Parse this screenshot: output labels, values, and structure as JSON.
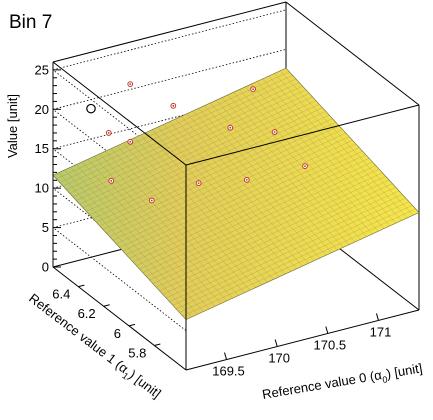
{
  "chart_data": {
    "type": "scatter",
    "title": "Bin 7",
    "zlabel": "Value [unit]",
    "xlabel_main": "Reference value 0 (α",
    "xlabel_sub": "0",
    "xlabel_tail": ") [unit]",
    "ylabel_main": "Reference value 1 (α",
    "ylabel_sub": "1",
    "ylabel_tail": ") [unit]",
    "x_range": [
      169.1,
      171.4
    ],
    "y_range": [
      5.55,
      6.6
    ],
    "z_range": [
      0,
      26
    ],
    "x_ticks": [
      169.5,
      170,
      170.5,
      171
    ],
    "x_tick_labels": [
      "169.5",
      "170",
      "170.5",
      "171"
    ],
    "y_ticks": [
      5.8,
      6,
      6.2,
      6.4
    ],
    "y_tick_labels": [
      "5.8",
      "6",
      "6.2",
      "6.4"
    ],
    "z_ticks": [
      0,
      5,
      10,
      15,
      20,
      25
    ],
    "z_tick_labels": [
      "0",
      "5",
      "10",
      "15",
      "20",
      "25"
    ],
    "surface": {
      "type": "plane",
      "z0": 12.0,
      "dz_dx": 2.6,
      "dz_dy": 5.0,
      "x_ref": 170.25,
      "y_ref": 6.075,
      "grid": 40
    },
    "points": [
      {
        "x": 169.35,
        "y": 6.5,
        "z": 20.5,
        "emphasis": true
      },
      {
        "x": 169.3,
        "y": 6.3,
        "z": 14.0
      },
      {
        "x": 169.4,
        "y": 6.4,
        "z": 18.5
      },
      {
        "x": 169.45,
        "y": 6.1,
        "z": 13.5
      },
      {
        "x": 169.55,
        "y": 6.35,
        "z": 17.5
      },
      {
        "x": 169.8,
        "y": 6.55,
        "z": 21.5
      },
      {
        "x": 169.85,
        "y": 6.05,
        "z": 15.0
      },
      {
        "x": 170.1,
        "y": 6.45,
        "z": 19.0
      },
      {
        "x": 170.2,
        "y": 5.95,
        "z": 15.5
      },
      {
        "x": 170.35,
        "y": 6.2,
        "z": 18.5
      },
      {
        "x": 170.7,
        "y": 6.3,
        "z": 21.0
      },
      {
        "x": 170.6,
        "y": 6.05,
        "z": 19.0
      },
      {
        "x": 170.65,
        "y": 5.85,
        "z": 17.0
      }
    ]
  }
}
